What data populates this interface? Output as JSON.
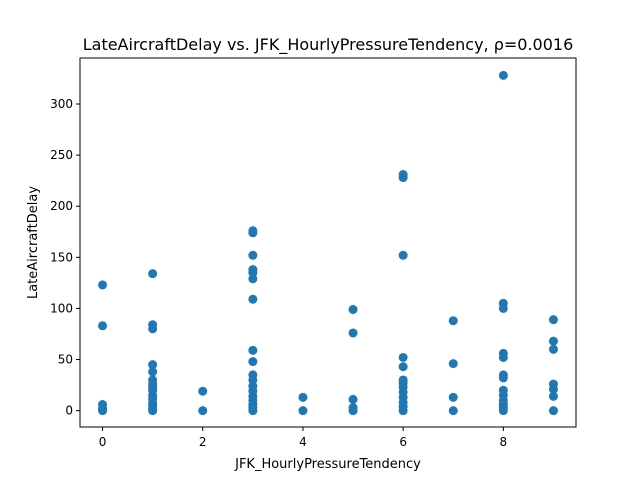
{
  "chart_data": {
    "type": "scatter",
    "title": "LateAircraftDelay vs. JFK_HourlyPressureTendency, ρ=0.0016",
    "xlabel": "JFK_HourlyPressureTendency",
    "ylabel": "LateAircraftDelay",
    "xlim": [
      -0.45,
      9.45
    ],
    "ylim": [
      -16,
      345
    ],
    "xticks": [
      0,
      2,
      4,
      6,
      8
    ],
    "yticks": [
      0,
      50,
      100,
      150,
      200,
      250,
      300
    ],
    "grid": false,
    "marker_color": "#1f77b4",
    "points": [
      [
        0,
        0
      ],
      [
        0,
        2
      ],
      [
        0,
        6
      ],
      [
        0,
        83
      ],
      [
        0,
        123
      ],
      [
        1,
        0
      ],
      [
        1,
        2
      ],
      [
        1,
        5
      ],
      [
        1,
        8
      ],
      [
        1,
        12
      ],
      [
        1,
        15
      ],
      [
        1,
        20
      ],
      [
        1,
        23
      ],
      [
        1,
        26
      ],
      [
        1,
        30
      ],
      [
        1,
        38
      ],
      [
        1,
        45
      ],
      [
        1,
        80
      ],
      [
        1,
        84
      ],
      [
        1,
        134
      ],
      [
        2,
        0
      ],
      [
        2,
        19
      ],
      [
        3,
        0
      ],
      [
        3,
        3
      ],
      [
        3,
        6
      ],
      [
        3,
        10
      ],
      [
        3,
        14
      ],
      [
        3,
        19
      ],
      [
        3,
        24
      ],
      [
        3,
        30
      ],
      [
        3,
        35
      ],
      [
        3,
        48
      ],
      [
        3,
        59
      ],
      [
        3,
        109
      ],
      [
        3,
        129
      ],
      [
        3,
        135
      ],
      [
        3,
        138
      ],
      [
        3,
        152
      ],
      [
        3,
        174
      ],
      [
        3,
        176
      ],
      [
        4,
        0
      ],
      [
        4,
        13
      ],
      [
        5,
        0
      ],
      [
        5,
        3
      ],
      [
        5,
        11
      ],
      [
        5,
        76
      ],
      [
        5,
        99
      ],
      [
        6,
        0
      ],
      [
        6,
        4
      ],
      [
        6,
        8
      ],
      [
        6,
        13
      ],
      [
        6,
        18
      ],
      [
        6,
        23
      ],
      [
        6,
        27
      ],
      [
        6,
        30
      ],
      [
        6,
        43
      ],
      [
        6,
        52
      ],
      [
        6,
        152
      ],
      [
        6,
        228
      ],
      [
        6,
        231
      ],
      [
        7,
        0
      ],
      [
        7,
        13
      ],
      [
        7,
        46
      ],
      [
        7,
        88
      ],
      [
        8,
        0
      ],
      [
        8,
        3
      ],
      [
        8,
        6
      ],
      [
        8,
        10
      ],
      [
        8,
        15
      ],
      [
        8,
        20
      ],
      [
        8,
        32
      ],
      [
        8,
        35
      ],
      [
        8,
        52
      ],
      [
        8,
        56
      ],
      [
        8,
        100
      ],
      [
        8,
        105
      ],
      [
        8,
        328
      ],
      [
        9,
        0
      ],
      [
        9,
        14
      ],
      [
        9,
        21
      ],
      [
        9,
        26
      ],
      [
        9,
        60
      ],
      [
        9,
        68
      ],
      [
        9,
        89
      ]
    ]
  }
}
